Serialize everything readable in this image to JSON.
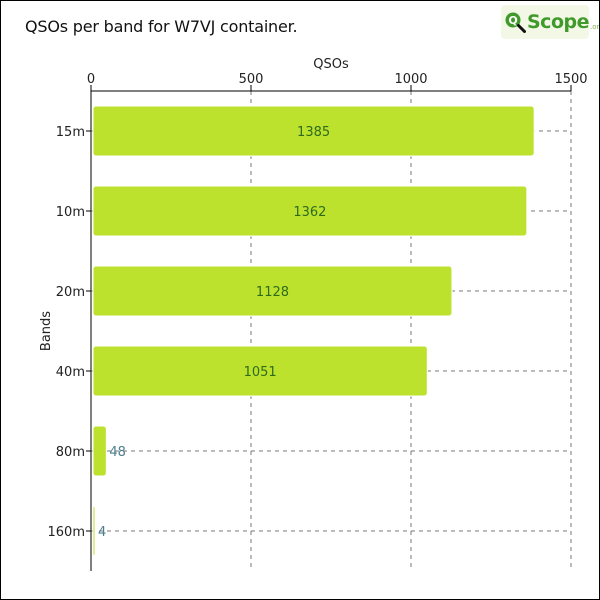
{
  "header": {
    "title": "QSOs per band for W7VJ container.",
    "logo_text": "Scope",
    "logo_sub": ".org"
  },
  "chart_data": {
    "type": "bar",
    "orientation": "horizontal",
    "xlabel": "QSOs",
    "ylabel": "Bands",
    "xlim": [
      0,
      1500
    ],
    "xticks": [
      0,
      500,
      1000,
      1500
    ],
    "x_axis_position": "top",
    "grid": true,
    "categories": [
      "15m",
      "10m",
      "20m",
      "40m",
      "80m",
      "160m"
    ],
    "values": [
      1385,
      1362,
      1128,
      1051,
      48,
      4
    ],
    "bar_color": "#bde22e",
    "label_inside_color": "#2e6b1c",
    "label_outside_color": "#4f7f8f"
  }
}
